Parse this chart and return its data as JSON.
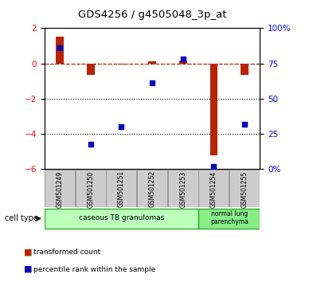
{
  "title": "GDS4256 / g4505048_3p_at",
  "samples": [
    "GSM501249",
    "GSM501250",
    "GSM501251",
    "GSM501252",
    "GSM501253",
    "GSM501254",
    "GSM501255"
  ],
  "red_values": [
    1.5,
    -0.65,
    -0.05,
    0.1,
    0.15,
    -5.2,
    -0.65
  ],
  "blue_values_pct": [
    86,
    18,
    30,
    61,
    78,
    2,
    32
  ],
  "red_color": "#bb2200",
  "blue_color": "#0000bb",
  "ylim_left": [
    -6,
    2
  ],
  "ylim_right": [
    0,
    100
  ],
  "yticks_left": [
    2,
    0,
    -2,
    -4,
    -6
  ],
  "yticks_right": [
    0,
    25,
    50,
    75,
    100
  ],
  "ytick_labels_right": [
    "0%",
    "25",
    "50",
    "75",
    "100%"
  ],
  "legend_red": "transformed count",
  "legend_blue": "percentile rank within the sample",
  "cell_type_label": "cell type",
  "ct1_label": "caseous TB granulomas",
  "ct2_label": "normal lung\nparenchyma",
  "ct1_color": "#bbffbb",
  "ct2_color": "#88ee88"
}
